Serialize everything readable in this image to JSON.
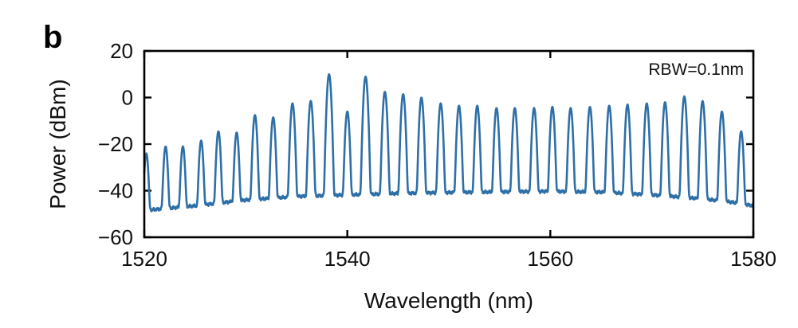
{
  "panel_label": "b",
  "annotation": "RBW=0.1nm",
  "chart_data": {
    "type": "line",
    "title": "",
    "xlabel": "Wavelength (nm)",
    "ylabel": "Power (dBm)",
    "xlim": [
      1520,
      1580
    ],
    "ylim": [
      -60,
      20
    ],
    "xticks": [
      1520,
      1540,
      1560,
      1580
    ],
    "xtick_labels": [
      "1520",
      "1540",
      "1560",
      "1580"
    ],
    "yticks": [
      -60,
      -40,
      -20,
      0,
      20
    ],
    "ytick_labels": [
      "−60",
      "−40",
      "−20",
      "0",
      "20"
    ],
    "grid": false,
    "line_color": "#2e6fa7",
    "baseline": {
      "x": [
        1520,
        1525,
        1530,
        1535,
        1540,
        1545,
        1550,
        1555,
        1560,
        1565,
        1570,
        1575,
        1578,
        1580
      ],
      "y": [
        -48.5,
        -46.5,
        -44.0,
        -42.5,
        -41.8,
        -41.2,
        -40.8,
        -40.5,
        -40.3,
        -40.6,
        -41.8,
        -43.5,
        -45.0,
        -46.5
      ]
    },
    "peaks": {
      "x": [
        1520.2,
        1522.1,
        1523.8,
        1525.6,
        1527.3,
        1529.1,
        1530.9,
        1532.7,
        1534.6,
        1536.4,
        1538.2,
        1540.0,
        1541.8,
        1543.7,
        1545.5,
        1547.3,
        1549.2,
        1551.0,
        1552.8,
        1554.7,
        1556.5,
        1558.4,
        1560.2,
        1562.0,
        1563.9,
        1565.8,
        1567.6,
        1569.5,
        1571.3,
        1573.2,
        1575.0,
        1576.9,
        1578.8
      ],
      "y": [
        -24,
        -21,
        -21,
        -18.5,
        -14.5,
        -15,
        -7.5,
        -8.5,
        -2.5,
        -1.5,
        10,
        -6,
        9,
        2.5,
        1.5,
        0,
        -2.5,
        -3.5,
        -3.5,
        -4.5,
        -4.5,
        -4.5,
        -4,
        -4.5,
        -4,
        -3.5,
        -3,
        -2.5,
        -2,
        0.5,
        -1.5,
        -6,
        -14.5
      ]
    }
  }
}
